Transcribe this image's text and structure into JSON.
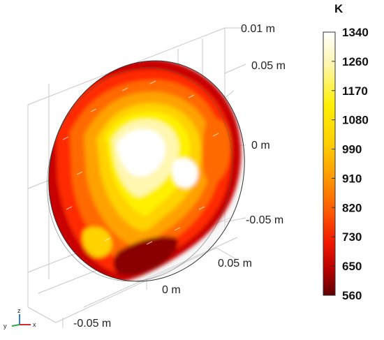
{
  "plot": {
    "axis_labels": {
      "z_top": "0.01 m",
      "z_upper": "0.05 m",
      "z_mid": "0 m",
      "z_lower": "-0.05 m",
      "y_front": "0.05 m",
      "y_mid": "0 m",
      "x_left": "-0.05 m"
    }
  },
  "colorbar": {
    "unit": "K",
    "ticks": [
      "1340",
      "1260",
      "1170",
      "1080",
      "990",
      "910",
      "820",
      "730",
      "650",
      "560"
    ],
    "colors": {
      "white": "#ffffff",
      "pale_yellow": "#fff6b0",
      "yellow": "#ffef00",
      "gold": "#ffd000",
      "orange": "#ff9a00",
      "dark_orange": "#ff6600",
      "red_orange": "#ff3300",
      "red": "#e00000",
      "dark_red": "#b00000",
      "maroon": "#6a0000"
    }
  },
  "triad": {
    "x": "x",
    "y": "y",
    "z": "z"
  }
}
